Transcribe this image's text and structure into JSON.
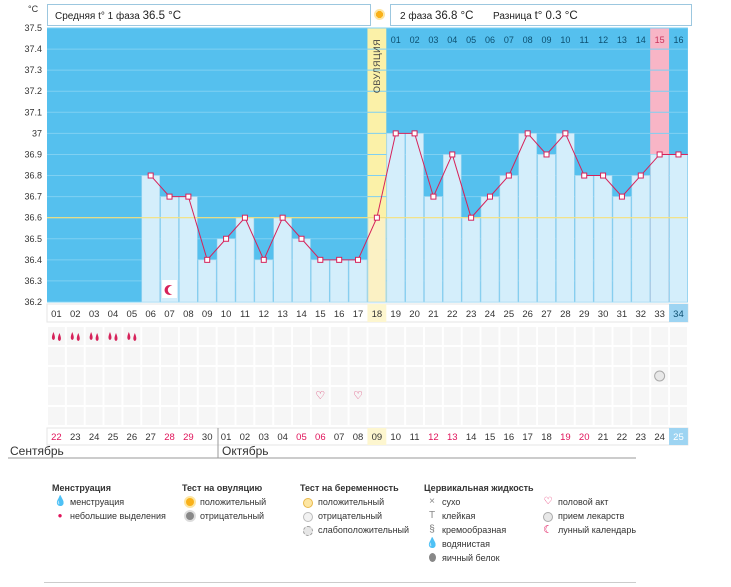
{
  "header": {
    "unit": "°C",
    "phase1_label": "Средняя t° 1 фаза",
    "phase1_value": "36.5 °C",
    "phase2_label": "2 фаза",
    "phase2_value": "36.8 °C",
    "diff_label": "Разница",
    "diff_value": "t° 0.3 °C"
  },
  "chart_data": {
    "type": "line",
    "title": "",
    "ylabel": "°C",
    "ylim": [
      36.2,
      37.5
    ],
    "y_ticks": [
      "36.2",
      "36.3",
      "36.4",
      "36.5",
      "36.6",
      "36.7",
      "36.8",
      "36.9",
      "37",
      "37.1",
      "37.2",
      "37.3",
      "37.4",
      "37.5"
    ],
    "cycle_days": [
      "01",
      "02",
      "03",
      "04",
      "05",
      "06",
      "07",
      "08",
      "09",
      "10",
      "11",
      "12",
      "13",
      "14",
      "15",
      "16",
      "17",
      "18",
      "19",
      "20",
      "21",
      "22",
      "23",
      "24",
      "25",
      "26",
      "27",
      "28",
      "29",
      "30",
      "31",
      "32",
      "33",
      "34"
    ],
    "temperatures": [
      null,
      null,
      null,
      null,
      null,
      36.8,
      36.7,
      36.7,
      36.4,
      36.5,
      36.6,
      36.4,
      36.6,
      36.5,
      36.4,
      36.4,
      36.4,
      36.6,
      37.0,
      37.0,
      36.7,
      36.9,
      36.6,
      36.7,
      36.8,
      37.0,
      36.9,
      37.0,
      36.8,
      36.8,
      36.7,
      36.8,
      36.9,
      36.9
    ],
    "coverline": 36.6,
    "ovulation_day_index": 17,
    "ovulation_label": "ОВУЛЯЦИЯ",
    "luteal_days": [
      "01",
      "02",
      "03",
      "04",
      "05",
      "06",
      "07",
      "08",
      "09",
      "10",
      "11",
      "12",
      "13",
      "14",
      "15",
      "16"
    ],
    "highlighted_luteal_day": "15",
    "calendar_dates": [
      "22",
      "23",
      "24",
      "25",
      "26",
      "27",
      "28",
      "29",
      "30",
      "01",
      "02",
      "03",
      "04",
      "05",
      "06",
      "07",
      "08",
      "09",
      "10",
      "11",
      "12",
      "13",
      "14",
      "15",
      "16",
      "17",
      "18",
      "19",
      "20",
      "21",
      "22",
      "23",
      "24",
      "25"
    ],
    "weekend_indices": [
      0,
      6,
      7,
      13,
      14,
      20,
      21,
      27,
      28
    ],
    "today_index": 33
  },
  "months": {
    "first": "Сентябрь",
    "second": "Октябрь"
  },
  "legend": {
    "menstruation": {
      "title": "Менструация",
      "items": [
        "менструация",
        "небольшие выделения"
      ]
    },
    "ovulation_test": {
      "title": "Тест на овуляцию",
      "items": [
        "положительный",
        "отрицательный"
      ]
    },
    "pregnancy_test": {
      "title": "Тест на беременность",
      "items": [
        "положительный",
        "отрицательный",
        "слабоположительный"
      ]
    },
    "cervical": {
      "title": "Цервикальная жидкость",
      "items": [
        "сухо",
        "клейкая",
        "кремообразная",
        "водянистая",
        "яичный белок"
      ]
    },
    "other": {
      "items": [
        "половой акт",
        "прием лекарств",
        "лунный календарь"
      ]
    }
  },
  "colors": {
    "bg_blue": "#55c0ee",
    "bar": "#d4eefb",
    "bar_stroke": "#a7d8f0",
    "line": "#d6225a",
    "ovulation": "#fbf1a8",
    "highlight": "#f8b5c6",
    "today": "#9dd4f2",
    "weekend": "#e0135a"
  }
}
